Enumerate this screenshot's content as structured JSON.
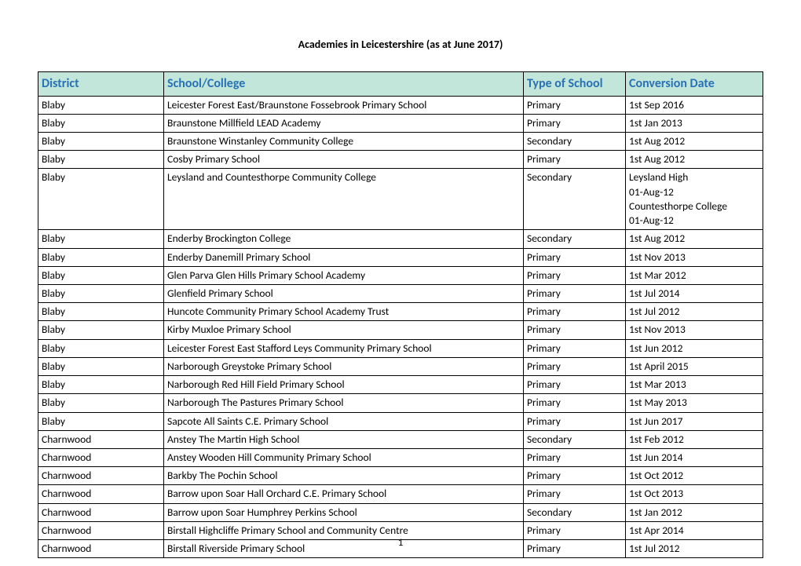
{
  "doc_title": "Academies in Leicestershire (as at June 2017)",
  "page_number": "1",
  "table": {
    "header_bg": "#c2e7da",
    "header_color": "#2971b6",
    "border_color": "#000000",
    "columns": [
      "District",
      "School/College",
      "Type of School",
      "Conversion Date"
    ],
    "rows": [
      [
        "Blaby",
        "Leicester Forest East/Braunstone Fossebrook Primary School",
        "Primary",
        "1st Sep 2016"
      ],
      [
        "Blaby",
        "Braunstone Millfield LEAD Academy",
        "Primary",
        "1st Jan 2013"
      ],
      [
        "Blaby",
        "Braunstone Winstanley Community College",
        "Secondary",
        "1st Aug 2012"
      ],
      [
        "Blaby",
        "Cosby Primary School",
        "Primary",
        "1st Aug 2012"
      ],
      [
        "Blaby",
        "Leysland and Countesthorpe Community College",
        "Secondary",
        "Leysland High\n 01-Aug-12\nCountesthorpe College\n01-Aug-12"
      ],
      [
        "Blaby",
        "Enderby Brockington College",
        "Secondary",
        "1st Aug 2012"
      ],
      [
        "Blaby",
        "Enderby Danemill Primary School",
        "Primary",
        "1st Nov 2013"
      ],
      [
        "Blaby",
        "Glen Parva Glen Hills Primary School Academy",
        "Primary",
        "1st Mar 2012"
      ],
      [
        "Blaby",
        "Glenfield Primary School",
        "Primary",
        "1st Jul 2014"
      ],
      [
        "Blaby",
        "Huncote Community Primary School Academy Trust",
        "Primary",
        "1st Jul 2012"
      ],
      [
        "Blaby",
        "Kirby Muxloe Primary School",
        "Primary",
        "1st Nov 2013"
      ],
      [
        "Blaby",
        "Leicester Forest East Stafford Leys Community Primary School",
        "Primary",
        "1st Jun 2012"
      ],
      [
        "Blaby",
        "Narborough Greystoke Primary School",
        "Primary",
        "1st April 2015"
      ],
      [
        "Blaby",
        "Narborough Red Hill Field Primary School",
        "Primary",
        "1st Mar 2013"
      ],
      [
        "Blaby",
        "Narborough The Pastures Primary School",
        "Primary",
        "1st May 2013"
      ],
      [
        "Blaby",
        "Sapcote All Saints C.E. Primary School",
        "Primary",
        "1st Jun 2017"
      ],
      [
        "Charnwood",
        "Anstey The Martin High School",
        "Secondary",
        "1st Feb 2012"
      ],
      [
        "Charnwood",
        "Anstey Wooden Hill Community Primary School",
        "Primary",
        "1st Jun 2014"
      ],
      [
        "Charnwood",
        "Barkby The Pochin School",
        "Primary",
        "1st Oct 2012"
      ],
      [
        "Charnwood",
        "Barrow upon Soar Hall Orchard C.E. Primary School",
        "Primary",
        "1st Oct 2013"
      ],
      [
        "Charnwood",
        "Barrow upon Soar Humphrey Perkins School",
        "Secondary",
        "1st Jan 2012"
      ],
      [
        "Charnwood",
        "Birstall Highcliffe Primary School and Community Centre",
        "Primary",
        "1st Apr 2014"
      ],
      [
        "Charnwood",
        "Birstall Riverside Primary School",
        "Primary",
        "1st Jul 2012"
      ]
    ]
  }
}
